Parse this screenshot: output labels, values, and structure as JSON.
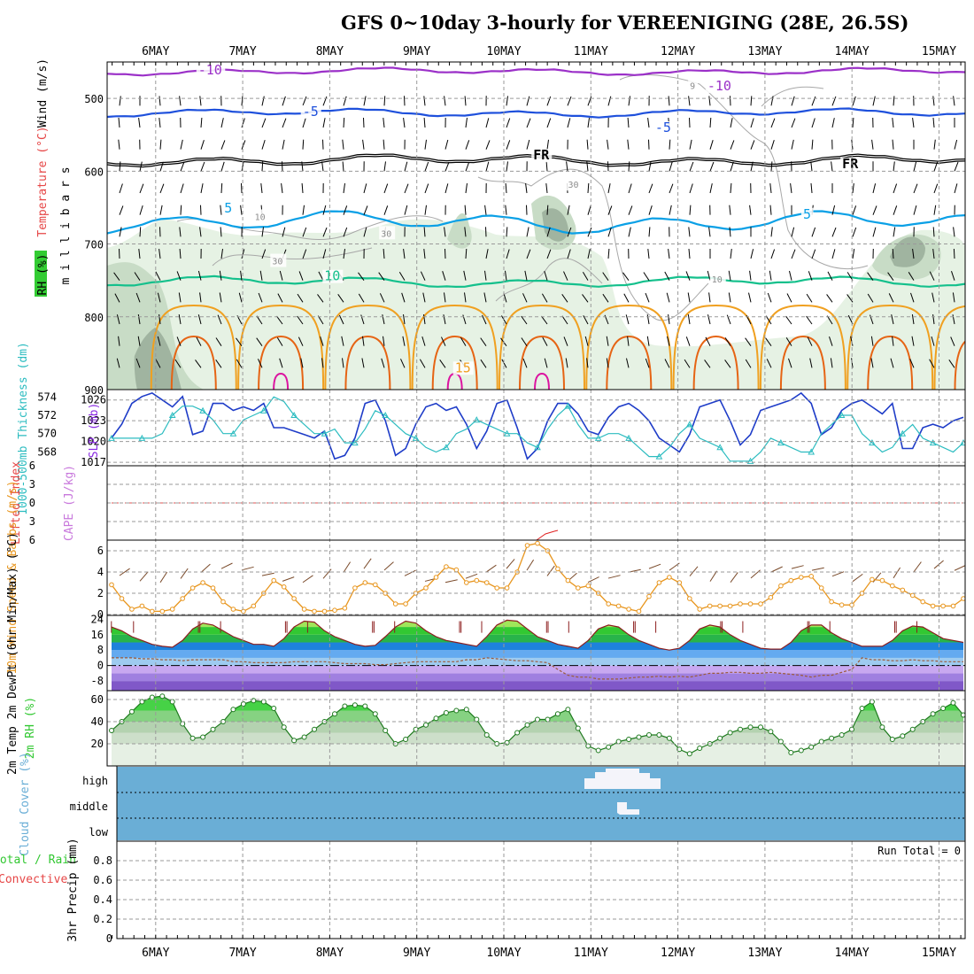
{
  "title": "GFS 0~10day 3-hourly for VEREENIGING (28E, 26.5S)",
  "date_labels": [
    "6MAY",
    "7MAY",
    "8MAY",
    "9MAY",
    "10MAY",
    "11MAY",
    "12MAY",
    "13MAY",
    "14MAY",
    "15MAY"
  ],
  "colors": {
    "grid": "#9a9a9a",
    "cloud_bg": "#6aaed6",
    "green_dark": "#2bc82b",
    "purple": "#9b30c8",
    "blue": "#1e50dc",
    "black": "#000000",
    "cyan": "#0aa0e6",
    "teal": "#14c08c",
    "orange": "#f0a020",
    "dark_orange": "#e66414",
    "magenta": "#dc14a0",
    "slp": "#1e3cc8",
    "thickness": "#2cbcc0",
    "wind": "#e8961e",
    "rh": "#32c832",
    "dewpt": "#9c5a3a"
  },
  "chart_data": [
    {
      "type": "contour",
      "panel": "upper-air",
      "ylabel": "m i l l i b a r s",
      "side_labels": {
        "wind": "Wind (m/s)",
        "temperature": "Temperature (°C)",
        "rh": "RH (%)"
      },
      "yticks": [
        500,
        600,
        700,
        800,
        900
      ],
      "ylim": [
        450,
        900
      ],
      "contour_labels": [
        {
          "text": "-10",
          "x": 1.2,
          "p": 467
        },
        {
          "text": "-10",
          "x": 7.05,
          "p": 489
        },
        {
          "text": "-5",
          "x": 2.4,
          "p": 524
        },
        {
          "text": "-5",
          "x": 6.45,
          "p": 546
        },
        {
          "text": "FR",
          "x": 5.05,
          "p": 584
        },
        {
          "text": "FR",
          "x": 8.6,
          "p": 596
        },
        {
          "text": "5",
          "x": 1.5,
          "p": 657
        },
        {
          "text": "5",
          "x": 8.15,
          "p": 665
        },
        {
          "text": "10",
          "x": 2.65,
          "p": 750
        },
        {
          "text": "15",
          "x": 4.15,
          "p": 876
        },
        {
          "text": "30",
          "x": 5.45,
          "p": 623
        },
        {
          "text": "30",
          "x": 3.3,
          "p": 690
        },
        {
          "text": "30",
          "x": 2.05,
          "p": 728
        },
        {
          "text": "10",
          "x": 1.85,
          "p": 667
        },
        {
          "text": "10",
          "x": 7.1,
          "p": 753
        },
        {
          "text": "9",
          "x": 6.85,
          "p": 487
        }
      ],
      "levels_C": [
        -10,
        -5,
        0,
        5,
        10,
        15,
        20,
        25
      ]
    },
    {
      "type": "line",
      "panel": "slp-thickness",
      "ylabel_left": "1000-500mb Thickness (dm)",
      "ylabel_right": "SLP (mb)",
      "left_ticks": [
        568,
        570,
        572,
        574
      ],
      "right_ticks": [
        1017,
        1020,
        1023,
        1026
      ],
      "series": [
        {
          "name": "SLP (mb)",
          "axis": "right",
          "values": [
            1020.5,
            1022.5,
            1025.5,
            1026.5,
            1027,
            1026,
            1025,
            1026.5,
            1021,
            1021.5,
            1025.5,
            1025.5,
            1024.5,
            1025,
            1024.5,
            1025.5,
            1022,
            1022,
            1021.5,
            1021,
            1020.5,
            1021.5,
            1017.5,
            1018,
            1020.5,
            1025.5,
            1026,
            1023,
            1018,
            1019,
            1022.5,
            1025,
            1025.5,
            1024.5,
            1025,
            1022.5,
            1019,
            1021.5,
            1025.5,
            1026,
            1022,
            1017.5,
            1019,
            1023,
            1025.5,
            1025.5,
            1024,
            1021.5,
            1021,
            1023.5,
            1025,
            1025.5,
            1024.5,
            1023,
            1020.5,
            1019.5,
            1018.5,
            1021,
            1025,
            1025.5,
            1026,
            1023,
            1019.5,
            1021,
            1024.5,
            1025,
            1025.5,
            1026,
            1027,
            1025.5,
            1021,
            1022,
            1024.5,
            1025.5,
            1026,
            1025,
            1024,
            1025.5,
            1019,
            1019,
            1022,
            1022.5,
            1022,
            1023,
            1023.5
          ]
        },
        {
          "name": "Thickness (dm)",
          "axis": "left",
          "values": [
            569.5,
            569.5,
            569.5,
            569.5,
            569.5,
            570,
            572,
            573,
            573,
            572.5,
            571.5,
            570,
            570,
            571.5,
            572,
            572.5,
            574,
            573.5,
            572,
            571,
            570,
            570,
            570.5,
            569,
            569,
            570.5,
            572.5,
            572,
            571,
            570,
            569.5,
            568.5,
            568,
            568.5,
            570,
            570.5,
            571.5,
            571,
            570.5,
            570,
            570,
            569,
            568.5,
            570.5,
            572,
            573,
            571,
            569.5,
            569.5,
            570,
            570,
            569.5,
            568.5,
            567.5,
            567.5,
            568.5,
            570,
            571,
            569.5,
            569,
            568.5,
            567,
            567,
            567,
            568,
            569.5,
            569,
            568.5,
            568,
            568,
            570,
            571,
            572,
            572,
            570,
            569,
            568,
            568.5,
            570,
            571,
            569.5,
            569,
            568.5,
            568,
            569
          ]
        }
      ]
    },
    {
      "type": "line",
      "panel": "lifted-index-cape",
      "ylabel_left": "Lifted Index",
      "ylabel_right": "CAPE (J/kg)",
      "yticks": [
        -6,
        -3,
        0,
        3,
        6
      ],
      "ylim": [
        -6,
        6
      ],
      "series": [
        {
          "name": "Lifted Index zero line",
          "values": [
            0
          ]
        }
      ]
    },
    {
      "type": "line",
      "panel": "wind-10m",
      "ylabel": "10m Wind Speed & Barbs (m/s)",
      "yticks": [
        0,
        2,
        4,
        6
      ],
      "ylim": [
        0,
        7
      ],
      "series": [
        {
          "name": "10m Wind Speed",
          "values": [
            2.8,
            1.5,
            0.5,
            0.8,
            0.3,
            0.3,
            0.5,
            1.5,
            2.5,
            3,
            2.5,
            1.2,
            0.5,
            0.3,
            0.8,
            2,
            3.2,
            2.6,
            1.5,
            0.5,
            0.3,
            0.3,
            0.4,
            0.6,
            2.5,
            3,
            2.8,
            2,
            1,
            1,
            2,
            2.5,
            3.5,
            4.5,
            4.2,
            3,
            3.2,
            3,
            2.5,
            2.5,
            4,
            6.5,
            6.7,
            6,
            4.3,
            3.2,
            2.5,
            2.7,
            2,
            1,
            0.8,
            0.5,
            0.3,
            1.7,
            3,
            3.5,
            3,
            1.5,
            0.5,
            0.8,
            0.8,
            0.8,
            1,
            1,
            1,
            1.6,
            2.7,
            3.2,
            3.5,
            3.6,
            2.5,
            1.2,
            0.9,
            0.9,
            2,
            3.3,
            3.2,
            2.7,
            2.3,
            1.8,
            1.2,
            0.8,
            0.8,
            0.8,
            1.5
          ]
        }
      ]
    },
    {
      "type": "area",
      "panel": "2m-temp",
      "ylabel": "2m Temp 2m DewPt (6hr Min/Max) (°C)",
      "yticks": [
        -8,
        0,
        8,
        16,
        24
      ],
      "ylim": [
        -13,
        26
      ],
      "series": [
        {
          "name": "2m Temp",
          "values": [
            20,
            18,
            15,
            13,
            11,
            10,
            9.5,
            13,
            19,
            22,
            21,
            18,
            15,
            13,
            11,
            11,
            10,
            14,
            20,
            23,
            22.5,
            18,
            15,
            13,
            11,
            10,
            10.5,
            15,
            20,
            23,
            22,
            18,
            15,
            13,
            12,
            11,
            10,
            15,
            21,
            23.5,
            23,
            19,
            15,
            13,
            11,
            10,
            9,
            13,
            19,
            21,
            20,
            16,
            13,
            11,
            9,
            8,
            9,
            13,
            19,
            21,
            20,
            16,
            13,
            11,
            9,
            8.5,
            8.5,
            12,
            18,
            21,
            21,
            17,
            14,
            12,
            10,
            10,
            10,
            13,
            18,
            20.5,
            20,
            17,
            14,
            13,
            12
          ]
        },
        {
          "name": "2m DewPt",
          "values": [
            4,
            4,
            4,
            3.5,
            3.5,
            3,
            3,
            2.5,
            3,
            3,
            3,
            3,
            2,
            2,
            1.5,
            1.5,
            1.5,
            1.5,
            2,
            2,
            2,
            2,
            1.5,
            1,
            1,
            1,
            0.5,
            0.5,
            1,
            1.5,
            2,
            2,
            2,
            2,
            2,
            3,
            3,
            4,
            3.5,
            3,
            2.5,
            2.5,
            2,
            1.5,
            -2,
            -5,
            -6,
            -6,
            -7,
            -7,
            -7,
            -6.5,
            -6,
            -6,
            -5.5,
            -6,
            -5.5,
            -6,
            -5,
            -4,
            -4,
            -3.5,
            -3.5,
            -4,
            -4,
            -3.5,
            -4,
            -4.5,
            -5,
            -6,
            -5,
            -5,
            -3.5,
            -2,
            4,
            3,
            3,
            2.5,
            2.5,
            3,
            2.5,
            2.5,
            2,
            2,
            2
          ]
        }
      ]
    },
    {
      "type": "area",
      "panel": "2m-rh",
      "ylabel": "2m RH (%)",
      "yticks": [
        20,
        40,
        60
      ],
      "ylim": [
        0,
        68
      ],
      "series": [
        {
          "name": "2m RH",
          "values": [
            32,
            40,
            49,
            58,
            62,
            63,
            58,
            38,
            25,
            26,
            33,
            40,
            51,
            56,
            59,
            58,
            52,
            35,
            23,
            26,
            33,
            40,
            47,
            54,
            55,
            54,
            47,
            32,
            20,
            24,
            33,
            37,
            43,
            48,
            50,
            51,
            42,
            28,
            20,
            21,
            30,
            37,
            42,
            42,
            47,
            51,
            34,
            18,
            14,
            17,
            22,
            24,
            26,
            28,
            28,
            25,
            15,
            11,
            16,
            20,
            25,
            30,
            33,
            35,
            35,
            31,
            22,
            12,
            14,
            17,
            22,
            25,
            28,
            33,
            52,
            58,
            35,
            24,
            27,
            33,
            40,
            47,
            52,
            57,
            46
          ]
        }
      ]
    },
    {
      "type": "table",
      "panel": "cloud-cover",
      "ylabel": "Cloud Cover (%)",
      "rows": [
        "high",
        "middle",
        "low"
      ],
      "note": "small patch of high and middle cloud around 11MAY"
    },
    {
      "type": "bar",
      "panel": "precip",
      "ylabel": "3hr Precip (mm)",
      "side_labels": {
        "total": "Total / Rain",
        "convective": "Convective"
      },
      "yticks": [
        0,
        0.2,
        0.4,
        0.6,
        0.8
      ],
      "ylim": [
        0,
        1
      ],
      "run_total": "Run Total = 0",
      "values": []
    }
  ]
}
